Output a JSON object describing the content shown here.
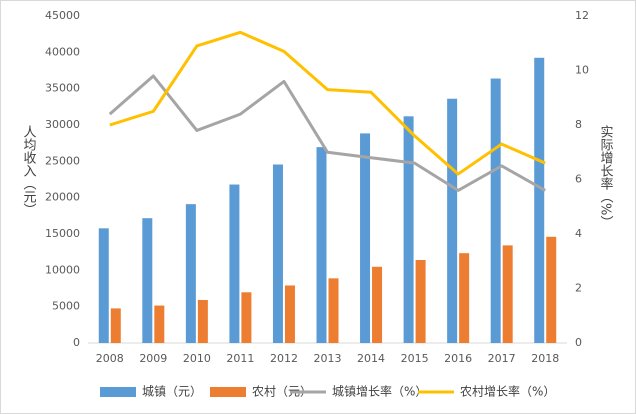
{
  "chart_data": {
    "type": "bar_line",
    "y_label": "人均收入（元）",
    "y2_label": "实际增长率（%）",
    "categories": [
      "2008",
      "2009",
      "2010",
      "2011",
      "2012",
      "2013",
      "2014",
      "2015",
      "2016",
      "2017",
      "2018"
    ],
    "series": [
      {
        "name": "城镇（元）",
        "type": "bar",
        "color": "#5b9bd5",
        "values": [
          15781,
          17175,
          19109,
          21810,
          24565,
          26955,
          28844,
          31195,
          33616,
          36396,
          39251
        ]
      },
      {
        "name": "农村（元）",
        "type": "bar",
        "color": "#ed7d31",
        "values": [
          4761,
          5153,
          5919,
          6977,
          7917,
          8896,
          10489,
          11422,
          12363,
          13432,
          14617
        ]
      },
      {
        "name": "城镇增长率（%）",
        "type": "line",
        "axis": "y2",
        "color": "#a5a5a5",
        "values": [
          8.4,
          9.8,
          7.8,
          8.4,
          9.6,
          7.0,
          6.8,
          6.6,
          5.6,
          6.5,
          5.6
        ]
      },
      {
        "name": "农村增长率（%）",
        "type": "line",
        "axis": "y2",
        "color": "#ffc000",
        "values": [
          8.0,
          8.5,
          10.9,
          11.4,
          10.7,
          9.3,
          9.2,
          7.6,
          6.2,
          7.3,
          6.6
        ]
      }
    ],
    "ylim": [
      0,
      45000
    ],
    "yticks": [
      0,
      5000,
      10000,
      15000,
      20000,
      25000,
      30000,
      35000,
      40000,
      45000
    ],
    "y2lim": [
      0,
      12
    ],
    "y2ticks": [
      0,
      2,
      4,
      6,
      8,
      10,
      12
    ],
    "legend": "bottom"
  }
}
